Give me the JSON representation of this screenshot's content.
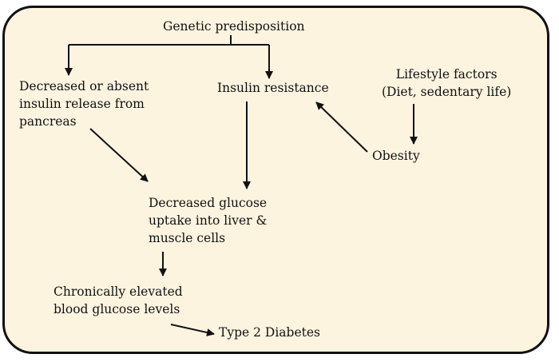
{
  "diagram": {
    "nodes": {
      "genetic": "Genetic predisposition",
      "decreased_insulin": "Decreased or absent\ninsulin release from\npancreas",
      "insulin_resistance": "Insulin resistance",
      "lifestyle": "Lifestyle factors\n(Diet, sedentary life)",
      "obesity": "Obesity",
      "decreased_uptake": "Decreased glucose\nuptake into liver &\nmuscle cells",
      "elevated_glucose": "Chronically elevated\nblood glucose levels",
      "type2": "Type 2 Diabetes"
    },
    "colors": {
      "background": "#fdf4df",
      "border": "#111111",
      "text": "#111111",
      "arrow": "#111111"
    }
  }
}
